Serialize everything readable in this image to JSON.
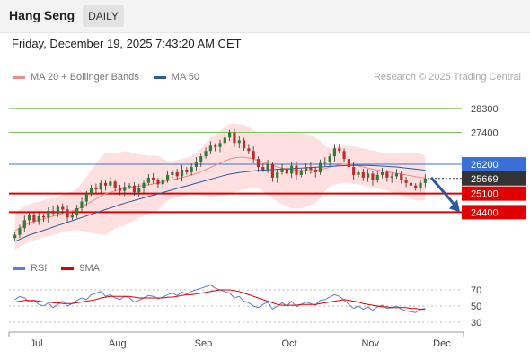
{
  "header": {
    "instrument": "Hang Seng",
    "period": "DAILY",
    "timestamp": "Friday, December 19, 2025 7:43:20 AM CET",
    "credit": "Research © 2025 Trading Central"
  },
  "colors": {
    "bullish": "#2e7d32",
    "bearish": "#c62828",
    "band_fill": "#ffd6d6",
    "ma20": "#ef8a8a",
    "ma50": "#2c5aa0",
    "resistance": "#7cc35a",
    "pivot": "#3a6fd8",
    "support": "#e00000",
    "last": "#333333",
    "rsi": "#5a7fd6",
    "rsi_ma": "#e00000",
    "arrow": "#2c5aa0"
  },
  "chart_data": [
    {
      "type": "candlestick",
      "title": "",
      "legend": [
        {
          "name": "MA 20 + Bollinger Bands",
          "color": "#ef8a8a"
        },
        {
          "name": "MA 50",
          "color": "#2c5aa0"
        }
      ],
      "x_ticks": [
        "Jul",
        "Aug",
        "Sep",
        "Oct",
        "Nov",
        "Dec"
      ],
      "ylim": [
        23200,
        29000
      ],
      "levels": [
        {
          "value": 28300,
          "label": "28300",
          "kind": "resistance"
        },
        {
          "value": 27400,
          "label": "27400",
          "kind": "resistance"
        },
        {
          "value": 26200,
          "label": "26200",
          "kind": "pivot"
        },
        {
          "value": 25669,
          "label": "25669",
          "kind": "last"
        },
        {
          "value": 25100,
          "label": "25100",
          "kind": "support"
        },
        {
          "value": 24400,
          "label": "24400",
          "kind": "support"
        }
      ],
      "forecast_arrow": {
        "from": 25700,
        "to": 24400
      },
      "series": [
        {
          "name": "Close",
          "values": [
            23550,
            23800,
            24100,
            24300,
            24050,
            24250,
            24200,
            24450,
            24350,
            24600,
            24500,
            24200,
            24300,
            24550,
            24800,
            25100,
            25300,
            25250,
            25500,
            25400,
            25550,
            25300,
            25200,
            25350,
            25400,
            25150,
            25300,
            25500,
            25700,
            25600,
            25450,
            25600,
            25800,
            25900,
            25750,
            26000,
            25900,
            26100,
            26300,
            26500,
            26700,
            26900,
            26850,
            27000,
            27200,
            27400,
            27000,
            27100,
            26800,
            26700,
            26400,
            26100,
            26000,
            26200,
            25700,
            25900,
            26050,
            25850,
            26150,
            25800,
            25950,
            26100,
            26000,
            25900,
            26250,
            26300,
            26500,
            26800,
            26700,
            26400,
            26100,
            25800,
            25900,
            25700,
            25850,
            25600,
            25800,
            25900,
            25700,
            25750,
            25850,
            25600,
            25500,
            25400,
            25300,
            25500,
            25669
          ]
        },
        {
          "name": "MA 20",
          "values": [
            23700,
            23800,
            23900,
            24000,
            24050,
            24100,
            24150,
            24200,
            24250,
            24300,
            24350,
            24400,
            24450,
            24500,
            24600,
            24700,
            24800,
            24900,
            25000,
            25100,
            25150,
            25200,
            25250,
            25300,
            25330,
            25350,
            25380,
            25400,
            25430,
            25460,
            25500,
            25540,
            25580,
            25620,
            25660,
            25700,
            25750,
            25800,
            25850,
            25920,
            26000,
            26080,
            26160,
            26240,
            26320,
            26400,
            26440,
            26460,
            26460,
            26440,
            26400,
            26340,
            26280,
            26220,
            26160,
            26100,
            26060,
            26020,
            26000,
            25980,
            25970,
            25970,
            25970,
            25980,
            26000,
            26040,
            26090,
            26140,
            26180,
            26200,
            26190,
            26170,
            26140,
            26100,
            26060,
            26020,
            25980,
            25950,
            25920,
            25890,
            25860,
            25830,
            25800,
            25770,
            25740,
            25710,
            25690
          ]
        },
        {
          "name": "MA 50",
          "values": [
            23300,
            23380,
            23460,
            23540,
            23600,
            23660,
            23720,
            23780,
            23840,
            23900,
            23960,
            24020,
            24080,
            24140,
            24200,
            24260,
            24320,
            24380,
            24440,
            24500,
            24560,
            24620,
            24680,
            24740,
            24790,
            24840,
            24890,
            24940,
            24990,
            25040,
            25090,
            25140,
            25190,
            25240,
            25290,
            25340,
            25390,
            25440,
            25490,
            25540,
            25590,
            25640,
            25690,
            25740,
            25790,
            25830,
            25860,
            25890,
            25910,
            25930,
            25950,
            25970,
            25980,
            25990,
            26000,
            26010,
            26020,
            26030,
            26040,
            26050,
            26060,
            26070,
            26080,
            26090,
            26100,
            26110,
            26120,
            26130,
            26140,
            26150,
            26160,
            26160,
            26160,
            26160,
            26160,
            26150,
            26140,
            26130,
            26120,
            26110,
            26100,
            26080,
            26060,
            26040,
            26020,
            26000,
            25980
          ]
        }
      ]
    },
    {
      "type": "line",
      "title": "",
      "legend": [
        {
          "name": "RSI",
          "color": "#5a7fd6"
        },
        {
          "name": "9MA",
          "color": "#e00000"
        }
      ],
      "y_ticks": [
        70,
        50,
        30
      ],
      "ylim": [
        20,
        80
      ],
      "series": [
        {
          "name": "RSI",
          "values": [
            58,
            62,
            60,
            55,
            57,
            52,
            50,
            54,
            48,
            52,
            56,
            50,
            53,
            57,
            60,
            58,
            64,
            66,
            68,
            62,
            64,
            60,
            58,
            62,
            60,
            55,
            57,
            60,
            63,
            62,
            59,
            61,
            64,
            66,
            63,
            67,
            65,
            68,
            70,
            72,
            74,
            76,
            72,
            70,
            68,
            66,
            60,
            62,
            56,
            54,
            50,
            48,
            52,
            55,
            46,
            50,
            54,
            50,
            56,
            49,
            52,
            55,
            53,
            51,
            57,
            58,
            61,
            64,
            62,
            57,
            52,
            47,
            50,
            46,
            49,
            45,
            49,
            51,
            47,
            48,
            50,
            46,
            44,
            43,
            42,
            46,
            47
          ]
        },
        {
          "name": "9MA",
          "values": [
            55,
            56,
            57,
            57,
            57,
            56,
            55,
            55,
            54,
            54,
            53,
            53,
            53,
            54,
            55,
            56,
            57,
            58,
            60,
            61,
            62,
            62,
            62,
            62,
            62,
            61,
            60,
            60,
            60,
            60,
            60,
            60,
            61,
            61,
            62,
            63,
            64,
            64,
            65,
            66,
            67,
            68,
            69,
            70,
            70,
            70,
            69,
            68,
            66,
            64,
            62,
            60,
            58,
            56,
            54,
            52,
            51,
            51,
            51,
            51,
            52,
            52,
            52,
            52,
            53,
            54,
            55,
            56,
            57,
            58,
            57,
            56,
            55,
            53,
            52,
            51,
            50,
            49,
            49,
            48,
            48,
            48,
            48,
            47,
            47,
            46,
            46
          ]
        }
      ]
    }
  ]
}
